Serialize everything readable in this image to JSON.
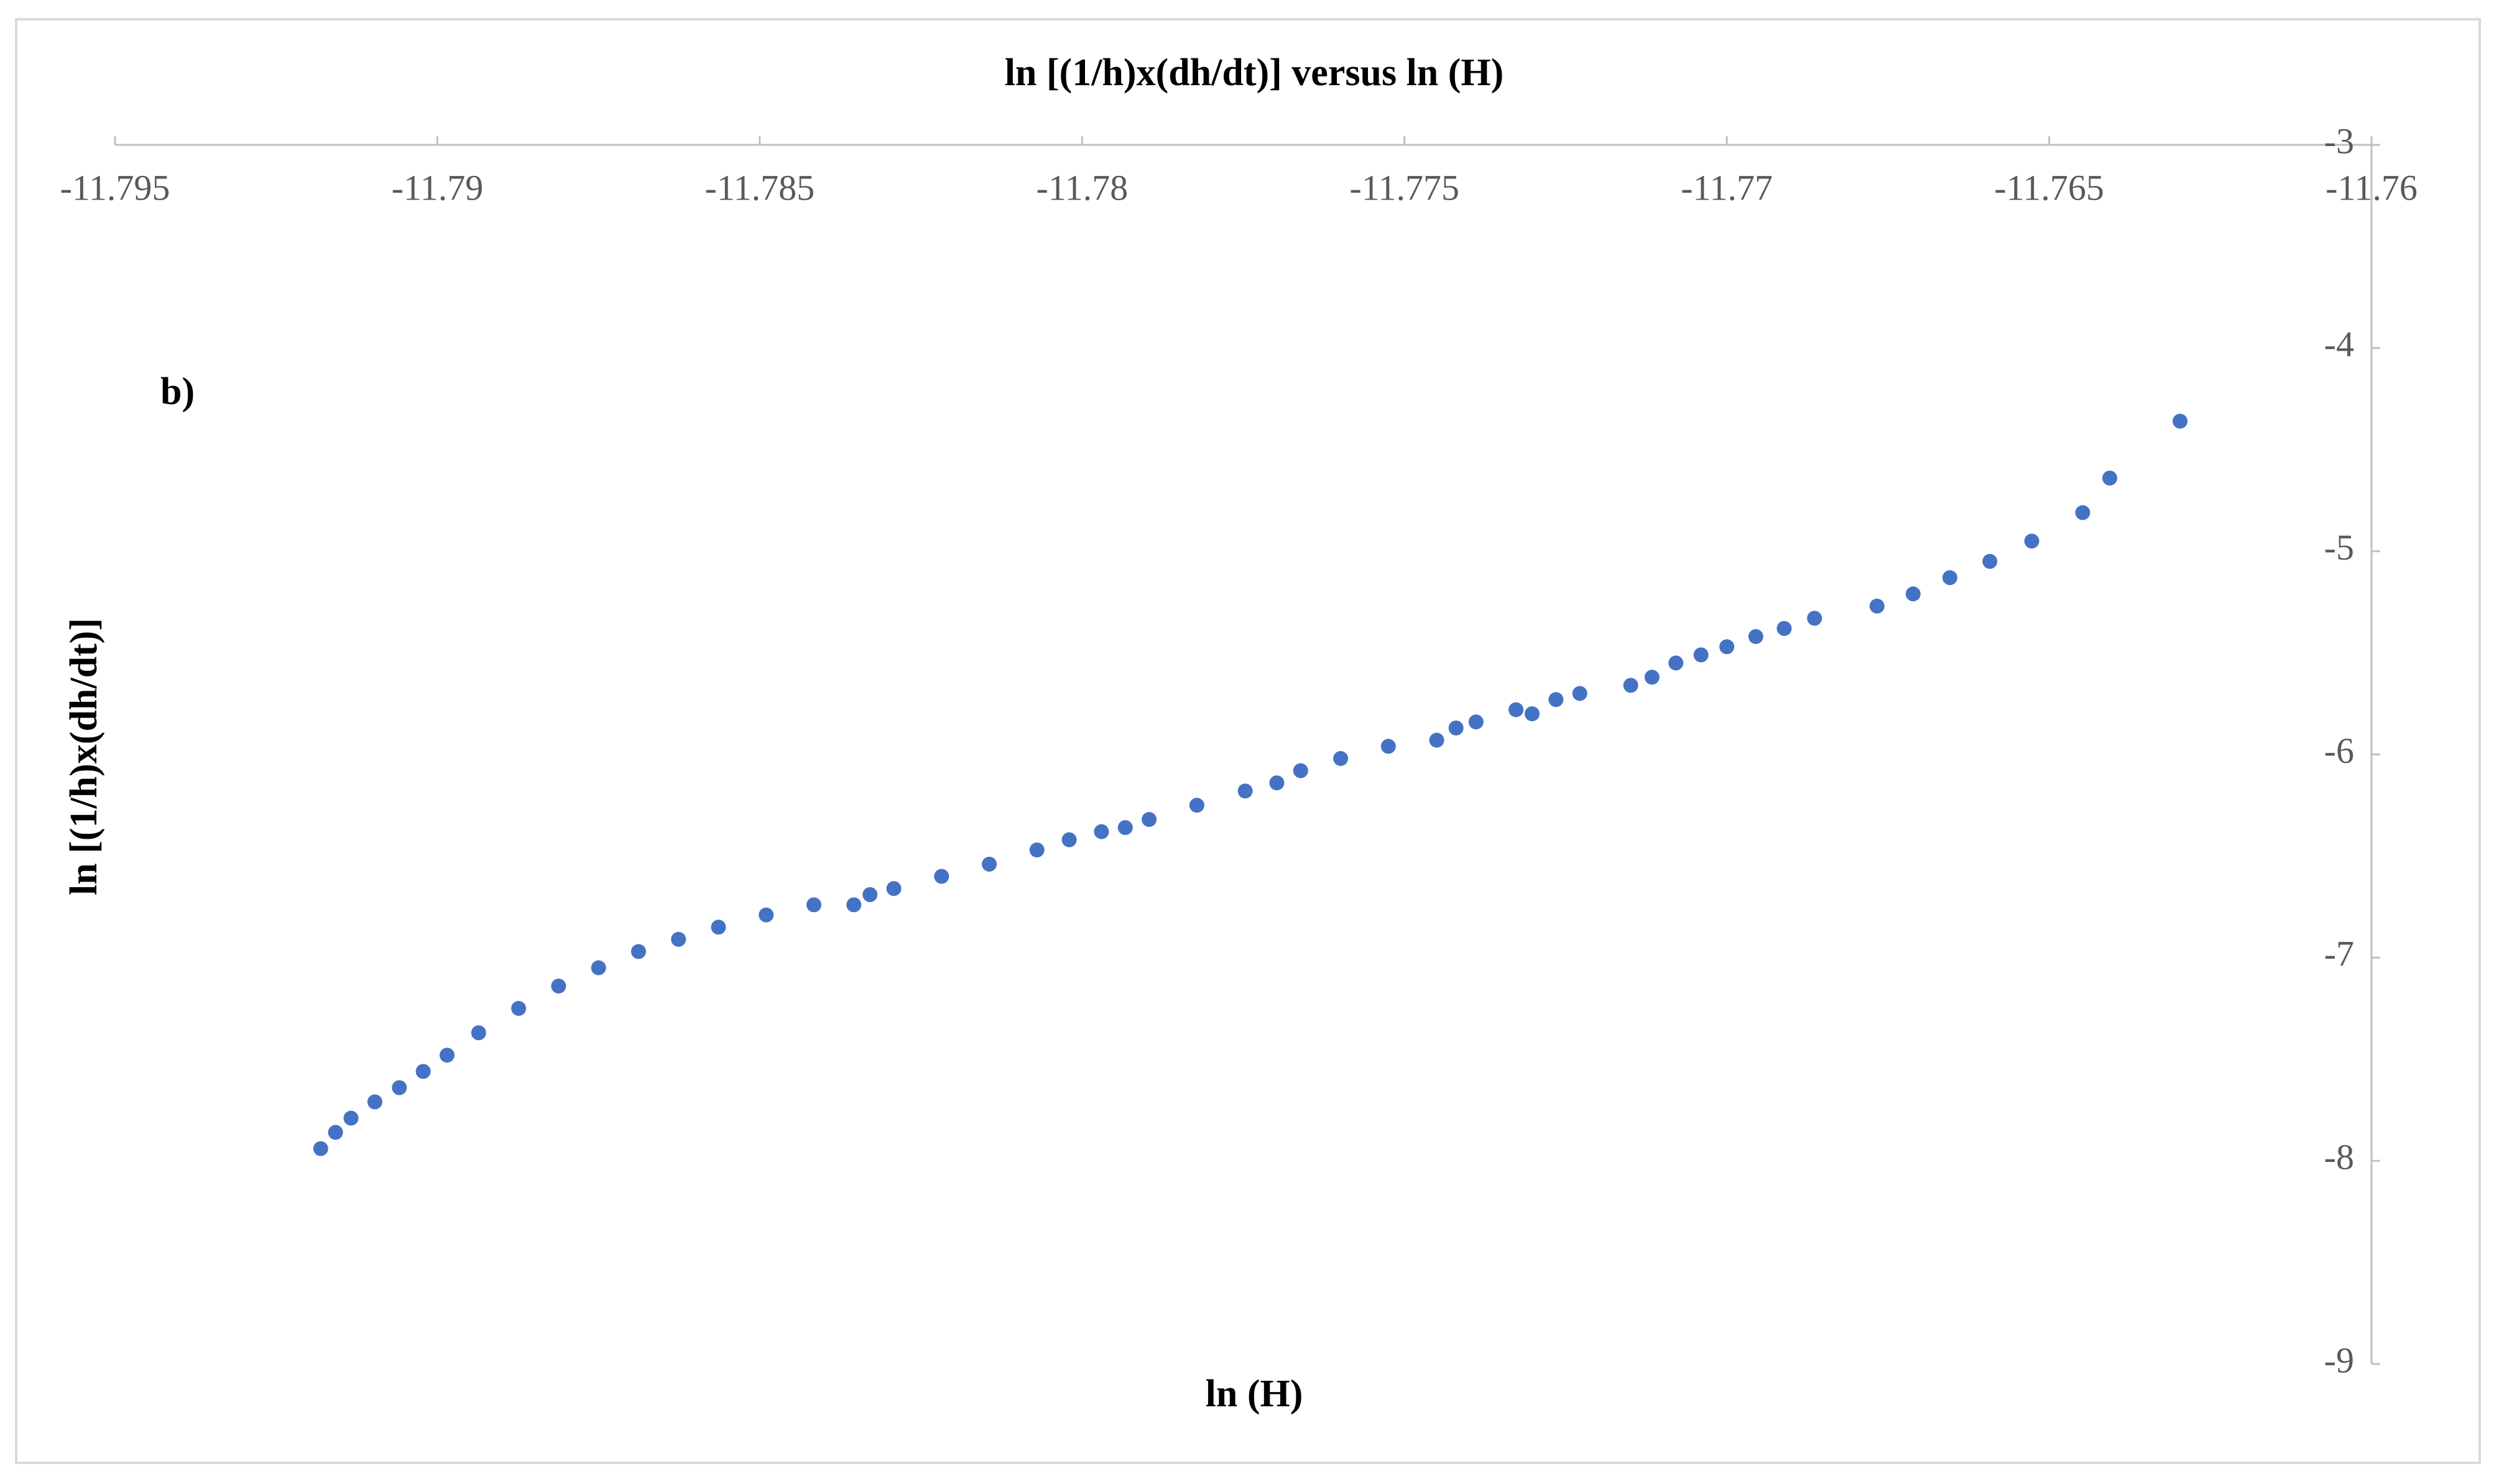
{
  "chart_data": {
    "type": "scatter",
    "title": "ln [(1/h)x(dh/dt)] versus ln (H)",
    "annotation": "b)",
    "x_label": "ln (H)",
    "y_label": "ln [(1/h)x(dh/dt)]",
    "color": "#4472c4",
    "xlim": [
      -11.795,
      -11.76
    ],
    "ylim": [
      -9,
      -3
    ],
    "xticks": [
      -11.795,
      -11.79,
      -11.785,
      -11.78,
      -11.775,
      -11.77,
      -11.765,
      -11.76
    ],
    "yticks": [
      -3,
      -4,
      -5,
      -6,
      -7,
      -8,
      -9
    ],
    "x": [
      -11.79181,
      -11.79158,
      -11.79134,
      -11.79097,
      -11.79059,
      -11.79022,
      -11.78985,
      -11.78936,
      -11.78874,
      -11.78812,
      -11.7875,
      -11.78688,
      -11.78626,
      -11.78564,
      -11.7849,
      -11.78416,
      -11.78354,
      -11.78329,
      -11.78292,
      -11.78218,
      -11.78144,
      -11.7807,
      -11.7802,
      -11.7797,
      -11.77933,
      -11.77896,
      -11.77822,
      -11.77747,
      -11.77698,
      -11.77661,
      -11.77599,
      -11.77525,
      -11.7745,
      -11.7742,
      -11.77389,
      -11.77327,
      -11.77302,
      -11.77265,
      -11.77228,
      -11.77149,
      -11.77116,
      -11.77079,
      -11.7704,
      -11.77,
      -11.76955,
      -11.76911,
      -11.76864,
      -11.76767,
      -11.76711,
      -11.76654,
      -11.76592,
      -11.76527,
      -11.76448,
      -11.76406,
      -11.76297
    ],
    "values": [
      -7.94,
      -7.86,
      -7.79,
      -7.71,
      -7.64,
      -7.56,
      -7.48,
      -7.37,
      -7.25,
      -7.14,
      -7.05,
      -6.97,
      -6.91,
      -6.85,
      -6.79,
      -6.74,
      -6.74,
      -6.69,
      -6.66,
      -6.6,
      -6.54,
      -6.47,
      -6.42,
      -6.38,
      -6.36,
      -6.32,
      -6.25,
      -6.18,
      -6.14,
      -6.08,
      -6.02,
      -5.96,
      -5.93,
      -5.87,
      -5.84,
      -5.78,
      -5.8,
      -5.73,
      -5.7,
      -5.66,
      -5.62,
      -5.55,
      -5.51,
      -5.47,
      -5.42,
      -5.38,
      -5.33,
      -5.27,
      -5.21,
      -5.13,
      -5.05,
      -4.95,
      -4.81,
      -4.64,
      -4.36
    ]
  }
}
